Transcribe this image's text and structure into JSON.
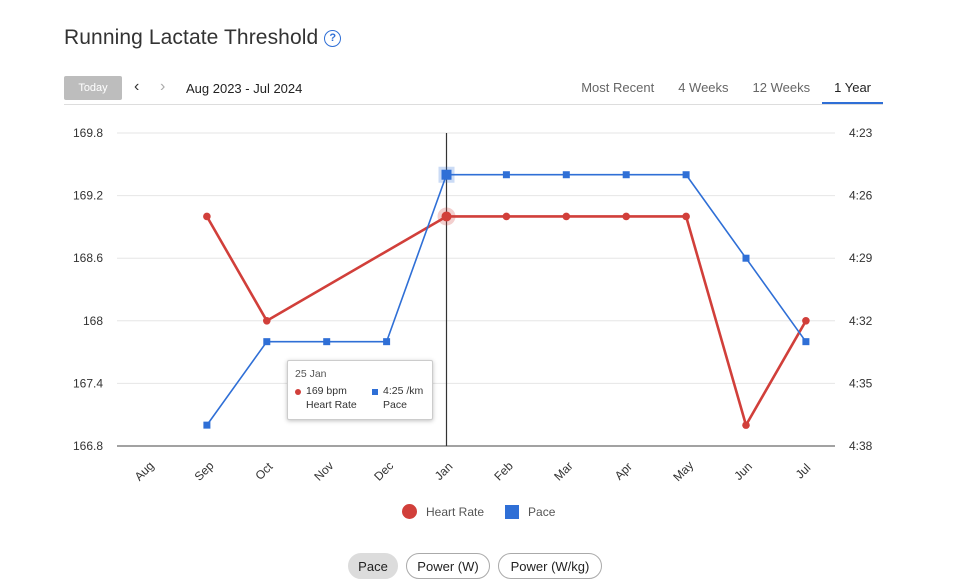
{
  "page": {
    "title": "Running Lactate Threshold"
  },
  "nav": {
    "today_label": "Today",
    "date_range": "Aug 2023 - Jul 2024",
    "tabs": [
      {
        "label": "Most Recent",
        "active": false
      },
      {
        "label": "4 Weeks",
        "active": false
      },
      {
        "label": "12 Weeks",
        "active": false
      },
      {
        "label": "1 Year",
        "active": true
      }
    ]
  },
  "colors": {
    "heart_rate": "#d13f3a",
    "pace": "#2f6fd6",
    "accent": "#2f6fd6"
  },
  "icons": {
    "help": "question-circle-icon",
    "prev": "chevron-left-icon",
    "next": "chevron-right-icon"
  },
  "chart_data": {
    "type": "line",
    "categories": [
      "Aug",
      "Sep",
      "Oct",
      "Nov",
      "Dec",
      "Jan",
      "Feb",
      "Mar",
      "Apr",
      "May",
      "Jun",
      "Jul"
    ],
    "y_left": {
      "ticks": [
        "169.8",
        "169.2",
        "168.6",
        "168",
        "167.4",
        "166.8"
      ],
      "range": [
        166.8,
        169.8
      ]
    },
    "y_right": {
      "ticks": [
        "4:23",
        "4:26",
        "4:29",
        "4:32",
        "4:35",
        "4:38"
      ],
      "range_seconds": [
        263,
        278
      ],
      "inverted": true
    },
    "series": [
      {
        "name": "Heart Rate",
        "axis": "left",
        "marker": "circle",
        "values": [
          null,
          169,
          168,
          168.4,
          168.7,
          169,
          169,
          169,
          169,
          169,
          167,
          168
        ],
        "line_gaps_skip": [
          3,
          4
        ]
      },
      {
        "name": "Pace",
        "axis": "right",
        "marker": "square",
        "values": [
          null,
          "4:37",
          "4:33",
          "4:33",
          "4:33",
          "4:25",
          "4:25",
          "4:25",
          "4:25",
          "4:25",
          "4:29",
          "4:33"
        ]
      }
    ],
    "crosshair_category": "Jan",
    "grid": true,
    "legend_position": "bottom"
  },
  "tooltip": {
    "date": "25 Jan",
    "heart_rate_value": "169 bpm",
    "heart_rate_label": "Heart Rate",
    "pace_value": "4:25 /km",
    "pace_label": "Pace"
  },
  "legend": {
    "heart_rate": "Heart Rate",
    "pace": "Pace"
  },
  "metric_buttons": [
    {
      "label": "Pace",
      "active": true
    },
    {
      "label": "Power (W)",
      "active": false
    },
    {
      "label": "Power (W/kg)",
      "active": false
    }
  ]
}
